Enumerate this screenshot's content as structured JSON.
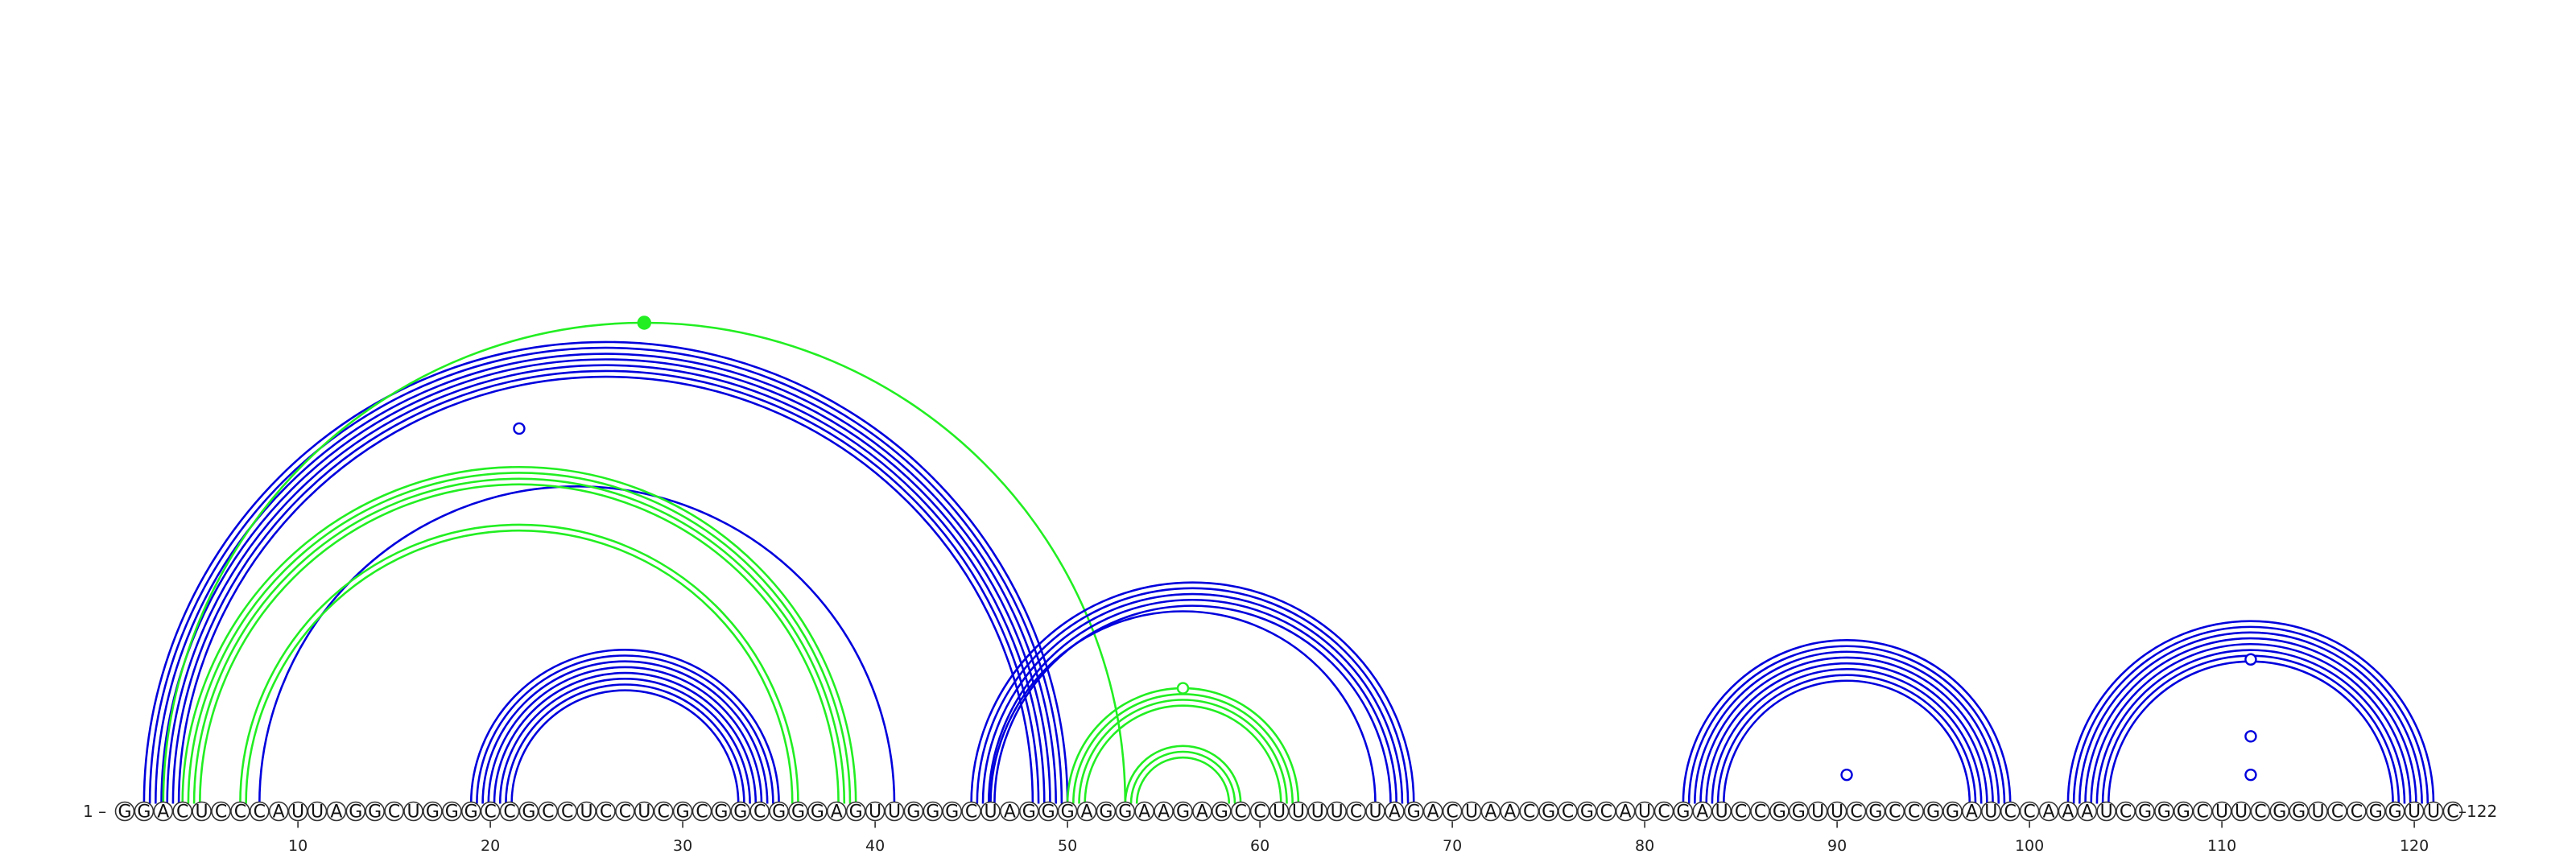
{
  "sequence": "GGACUCCCAUUAGGCUGGGCCGCCUCCUCGCGGCGGGAGUUGGGCUAGGGAGGAAGAGCCUUUUCUAGACUAACGCGCAUCGAUCCGGUUCGCCGGAUCCAAAUCGGGCUUCGGUCCGGUUC",
  "start_label": "1 –",
  "end_label": "–122",
  "ticks": [
    10,
    20,
    30,
    40,
    50,
    60,
    70,
    80,
    90,
    100,
    110,
    120
  ],
  "colors": {
    "blue": "#0000dd",
    "green": "#22ee22"
  },
  "arc_groups": [
    {
      "color": "blue",
      "start": 2,
      "end": 50,
      "count": 7
    },
    {
      "color": "blue",
      "start": 8,
      "end": 41,
      "count": 1
    },
    {
      "color": "green",
      "start": 4,
      "end": 39,
      "count": 4
    },
    {
      "color": "green",
      "start": 7,
      "end": 36,
      "count": 2
    },
    {
      "color": "green",
      "start": 3,
      "end": 53,
      "count": 1
    },
    {
      "color": "blue",
      "start": 19,
      "end": 35,
      "count": 8
    },
    {
      "color": "blue",
      "start": 45,
      "end": 68,
      "count": 5
    },
    {
      "color": "blue",
      "start": 46,
      "end": 66,
      "count": 1
    },
    {
      "color": "green",
      "start": 50,
      "end": 62,
      "count": 4
    },
    {
      "color": "green",
      "start": 53,
      "end": 59,
      "count": 3
    },
    {
      "color": "blue",
      "start": 82,
      "end": 99,
      "count": 8
    },
    {
      "color": "blue",
      "start": 102,
      "end": 121,
      "count": 8
    }
  ],
  "markers": [
    {
      "color": "green",
      "filled": true,
      "start": 3,
      "end": 53
    },
    {
      "color": "blue",
      "filled": false,
      "start": 2,
      "end": 41
    },
    {
      "color": "green",
      "filled": false,
      "start": 50,
      "end": 62
    },
    {
      "color": "blue",
      "filled": false,
      "start": 89,
      "end": 92
    },
    {
      "color": "blue",
      "filled": false,
      "start": 104,
      "end": 119
    },
    {
      "color": "blue",
      "filled": false,
      "start": 108,
      "end": 115
    },
    {
      "color": "blue",
      "filled": false,
      "start": 110,
      "end": 113
    }
  ]
}
